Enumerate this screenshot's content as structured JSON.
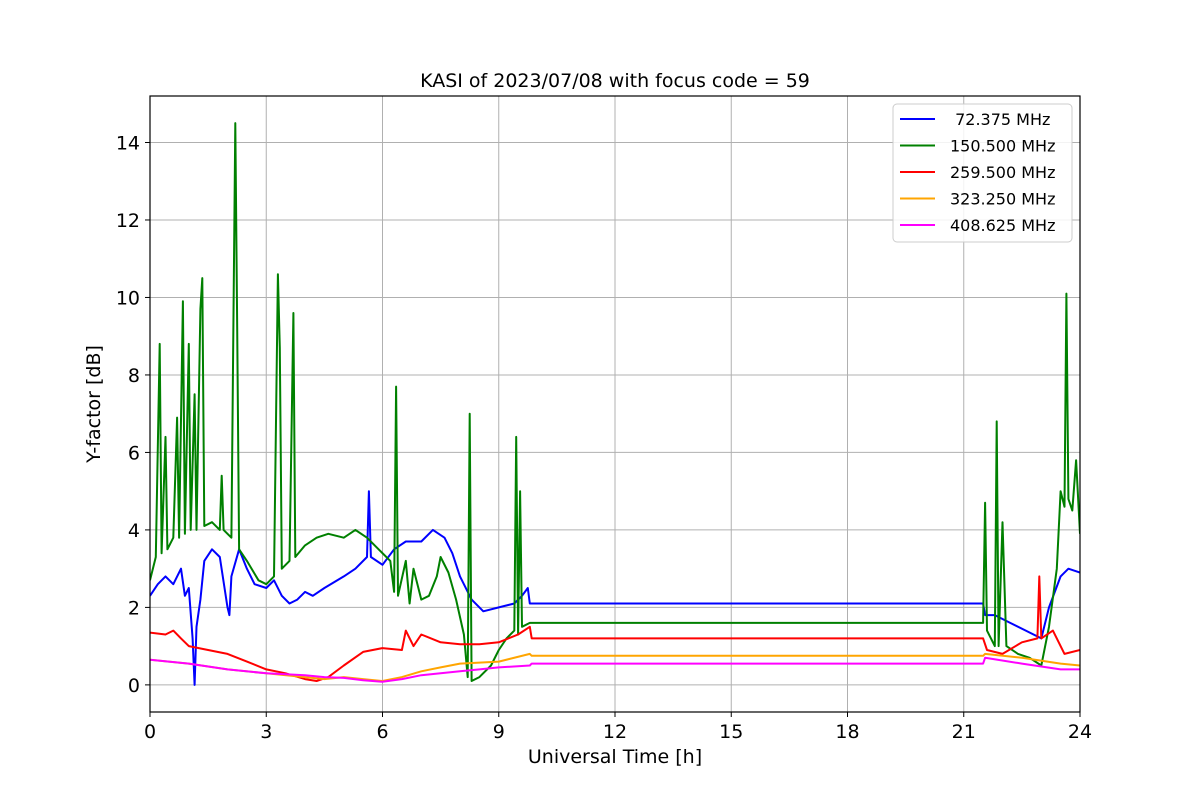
{
  "chart_data": {
    "type": "line",
    "title": "KASI of 2023/07/08 with focus code = 59",
    "xlabel": "Universal Time [h]",
    "ylabel": "Y-factor [dB]",
    "xlim": [
      0,
      24
    ],
    "ylim": [
      -0.7,
      15.2
    ],
    "xticks": [
      0,
      3,
      6,
      9,
      12,
      15,
      18,
      21,
      24
    ],
    "yticks": [
      0,
      2,
      4,
      6,
      8,
      10,
      12,
      14
    ],
    "grid": true,
    "legend_position": "top-right",
    "series": [
      {
        "name": " 72.375 MHz",
        "color": "#0000ff",
        "points": [
          [
            0,
            2.3
          ],
          [
            0.2,
            2.6
          ],
          [
            0.4,
            2.8
          ],
          [
            0.6,
            2.6
          ],
          [
            0.8,
            3.0
          ],
          [
            0.9,
            2.3
          ],
          [
            1.0,
            2.5
          ],
          [
            1.1,
            1.2
          ],
          [
            1.15,
            0.0
          ],
          [
            1.2,
            1.5
          ],
          [
            1.3,
            2.2
          ],
          [
            1.4,
            3.2
          ],
          [
            1.6,
            3.5
          ],
          [
            1.8,
            3.3
          ],
          [
            2.0,
            2.0
          ],
          [
            2.05,
            1.8
          ],
          [
            2.1,
            2.8
          ],
          [
            2.3,
            3.5
          ],
          [
            2.5,
            3.0
          ],
          [
            2.7,
            2.6
          ],
          [
            3.0,
            2.5
          ],
          [
            3.2,
            2.7
          ],
          [
            3.4,
            2.3
          ],
          [
            3.6,
            2.1
          ],
          [
            3.8,
            2.2
          ],
          [
            4.0,
            2.4
          ],
          [
            4.2,
            2.3
          ],
          [
            4.5,
            2.5
          ],
          [
            5.0,
            2.8
          ],
          [
            5.3,
            3.0
          ],
          [
            5.6,
            3.3
          ],
          [
            5.65,
            5.0
          ],
          [
            5.7,
            3.3
          ],
          [
            6.0,
            3.1
          ],
          [
            6.3,
            3.5
          ],
          [
            6.6,
            3.7
          ],
          [
            7.0,
            3.7
          ],
          [
            7.3,
            4.0
          ],
          [
            7.6,
            3.8
          ],
          [
            7.8,
            3.4
          ],
          [
            8.0,
            2.8
          ],
          [
            8.3,
            2.2
          ],
          [
            8.6,
            1.9
          ],
          [
            9.0,
            2.0
          ],
          [
            9.4,
            2.1
          ],
          [
            9.6,
            2.3
          ],
          [
            9.75,
            2.5
          ],
          [
            9.8,
            2.1
          ],
          [
            21.5,
            2.1
          ],
          [
            21.55,
            1.8
          ],
          [
            21.8,
            1.8
          ],
          [
            22.2,
            1.6
          ],
          [
            22.6,
            1.4
          ],
          [
            23.0,
            1.2
          ],
          [
            23.2,
            2.0
          ],
          [
            23.5,
            2.8
          ],
          [
            23.7,
            3.0
          ],
          [
            24.0,
            2.9
          ]
        ]
      },
      {
        "name": "150.500 MHz",
        "color": "#008000",
        "points": [
          [
            0,
            2.7
          ],
          [
            0.15,
            3.3
          ],
          [
            0.25,
            8.8
          ],
          [
            0.3,
            3.4
          ],
          [
            0.4,
            6.4
          ],
          [
            0.45,
            3.5
          ],
          [
            0.6,
            3.8
          ],
          [
            0.7,
            6.9
          ],
          [
            0.75,
            3.8
          ],
          [
            0.85,
            9.9
          ],
          [
            0.9,
            3.9
          ],
          [
            1.0,
            8.8
          ],
          [
            1.05,
            4.0
          ],
          [
            1.15,
            7.5
          ],
          [
            1.2,
            4.0
          ],
          [
            1.3,
            9.7
          ],
          [
            1.35,
            10.5
          ],
          [
            1.4,
            4.1
          ],
          [
            1.6,
            4.2
          ],
          [
            1.8,
            4.0
          ],
          [
            1.85,
            5.4
          ],
          [
            1.9,
            4.0
          ],
          [
            2.1,
            3.8
          ],
          [
            2.2,
            14.5
          ],
          [
            2.25,
            9.2
          ],
          [
            2.3,
            3.5
          ],
          [
            2.5,
            3.2
          ],
          [
            2.8,
            2.7
          ],
          [
            3.0,
            2.6
          ],
          [
            3.2,
            2.8
          ],
          [
            3.3,
            10.6
          ],
          [
            3.35,
            8.7
          ],
          [
            3.4,
            3.0
          ],
          [
            3.6,
            3.2
          ],
          [
            3.7,
            9.6
          ],
          [
            3.75,
            3.3
          ],
          [
            4.0,
            3.6
          ],
          [
            4.3,
            3.8
          ],
          [
            4.6,
            3.9
          ],
          [
            5.0,
            3.8
          ],
          [
            5.3,
            4.0
          ],
          [
            5.6,
            3.8
          ],
          [
            5.9,
            3.5
          ],
          [
            6.2,
            3.2
          ],
          [
            6.3,
            2.4
          ],
          [
            6.35,
            7.7
          ],
          [
            6.4,
            2.3
          ],
          [
            6.6,
            3.2
          ],
          [
            6.7,
            2.1
          ],
          [
            6.8,
            3.0
          ],
          [
            7.0,
            2.2
          ],
          [
            7.2,
            2.3
          ],
          [
            7.4,
            2.8
          ],
          [
            7.5,
            3.3
          ],
          [
            7.7,
            2.9
          ],
          [
            7.9,
            2.2
          ],
          [
            8.1,
            1.3
          ],
          [
            8.2,
            0.2
          ],
          [
            8.25,
            7.0
          ],
          [
            8.3,
            0.1
          ],
          [
            8.5,
            0.2
          ],
          [
            8.8,
            0.5
          ],
          [
            9.0,
            0.9
          ],
          [
            9.2,
            1.2
          ],
          [
            9.4,
            1.4
          ],
          [
            9.45,
            6.4
          ],
          [
            9.5,
            1.3
          ],
          [
            9.55,
            5.0
          ],
          [
            9.6,
            1.5
          ],
          [
            9.8,
            1.6
          ],
          [
            21.5,
            1.6
          ],
          [
            21.55,
            4.7
          ],
          [
            21.6,
            1.4
          ],
          [
            21.8,
            1.0
          ],
          [
            21.85,
            6.8
          ],
          [
            21.9,
            1.0
          ],
          [
            22.0,
            4.2
          ],
          [
            22.1,
            1.0
          ],
          [
            22.4,
            0.8
          ],
          [
            22.7,
            0.7
          ],
          [
            23.0,
            0.5
          ],
          [
            23.2,
            1.5
          ],
          [
            23.4,
            3.0
          ],
          [
            23.5,
            5.0
          ],
          [
            23.6,
            4.6
          ],
          [
            23.65,
            10.1
          ],
          [
            23.7,
            4.8
          ],
          [
            23.8,
            4.5
          ],
          [
            23.9,
            5.8
          ],
          [
            24.0,
            3.9
          ]
        ]
      },
      {
        "name": "259.500 MHz",
        "color": "#ff0000",
        "points": [
          [
            0,
            1.35
          ],
          [
            0.4,
            1.3
          ],
          [
            0.6,
            1.4
          ],
          [
            0.8,
            1.2
          ],
          [
            1.0,
            1.0
          ],
          [
            1.5,
            0.9
          ],
          [
            2.0,
            0.8
          ],
          [
            2.5,
            0.6
          ],
          [
            3.0,
            0.4
          ],
          [
            3.5,
            0.3
          ],
          [
            4.0,
            0.15
          ],
          [
            4.3,
            0.1
          ],
          [
            4.6,
            0.2
          ],
          [
            5.0,
            0.5
          ],
          [
            5.5,
            0.85
          ],
          [
            6.0,
            0.95
          ],
          [
            6.5,
            0.9
          ],
          [
            6.6,
            1.4
          ],
          [
            6.8,
            1.0
          ],
          [
            7.0,
            1.3
          ],
          [
            7.5,
            1.1
          ],
          [
            8.0,
            1.05
          ],
          [
            8.5,
            1.05
          ],
          [
            9.0,
            1.1
          ],
          [
            9.5,
            1.3
          ],
          [
            9.8,
            1.5
          ],
          [
            9.85,
            1.2
          ],
          [
            21.5,
            1.2
          ],
          [
            21.6,
            0.9
          ],
          [
            22.0,
            0.8
          ],
          [
            22.5,
            1.1
          ],
          [
            22.9,
            1.2
          ],
          [
            22.95,
            2.8
          ],
          [
            23.0,
            1.2
          ],
          [
            23.3,
            1.4
          ],
          [
            23.6,
            0.8
          ],
          [
            24.0,
            0.9
          ]
        ]
      },
      {
        "name": "323.250 MHz",
        "color": "#ffa500",
        "points": [
          [
            0,
            0.65
          ],
          [
            1.0,
            0.55
          ],
          [
            2.0,
            0.4
          ],
          [
            3.0,
            0.3
          ],
          [
            4.0,
            0.2
          ],
          [
            4.5,
            0.15
          ],
          [
            5.0,
            0.2
          ],
          [
            5.5,
            0.15
          ],
          [
            6.0,
            0.1
          ],
          [
            6.5,
            0.2
          ],
          [
            7.0,
            0.35
          ],
          [
            7.5,
            0.45
          ],
          [
            8.0,
            0.55
          ],
          [
            9.0,
            0.6
          ],
          [
            9.8,
            0.8
          ],
          [
            9.85,
            0.75
          ],
          [
            21.5,
            0.75
          ],
          [
            21.55,
            0.8
          ],
          [
            22.5,
            0.7
          ],
          [
            23.5,
            0.55
          ],
          [
            24.0,
            0.5
          ]
        ]
      },
      {
        "name": "408.625 MHz",
        "color": "#ff00ff",
        "points": [
          [
            0,
            0.65
          ],
          [
            1.0,
            0.55
          ],
          [
            2.0,
            0.4
          ],
          [
            3.0,
            0.3
          ],
          [
            4.0,
            0.25
          ],
          [
            4.5,
            0.2
          ],
          [
            5.0,
            0.18
          ],
          [
            5.5,
            0.12
          ],
          [
            6.0,
            0.08
          ],
          [
            6.5,
            0.15
          ],
          [
            7.0,
            0.25
          ],
          [
            7.5,
            0.3
          ],
          [
            8.0,
            0.35
          ],
          [
            8.5,
            0.4
          ],
          [
            9.0,
            0.45
          ],
          [
            9.8,
            0.5
          ],
          [
            9.85,
            0.55
          ],
          [
            21.5,
            0.55
          ],
          [
            21.55,
            0.7
          ],
          [
            22.5,
            0.55
          ],
          [
            23.5,
            0.4
          ],
          [
            24.0,
            0.4
          ]
        ]
      }
    ]
  }
}
